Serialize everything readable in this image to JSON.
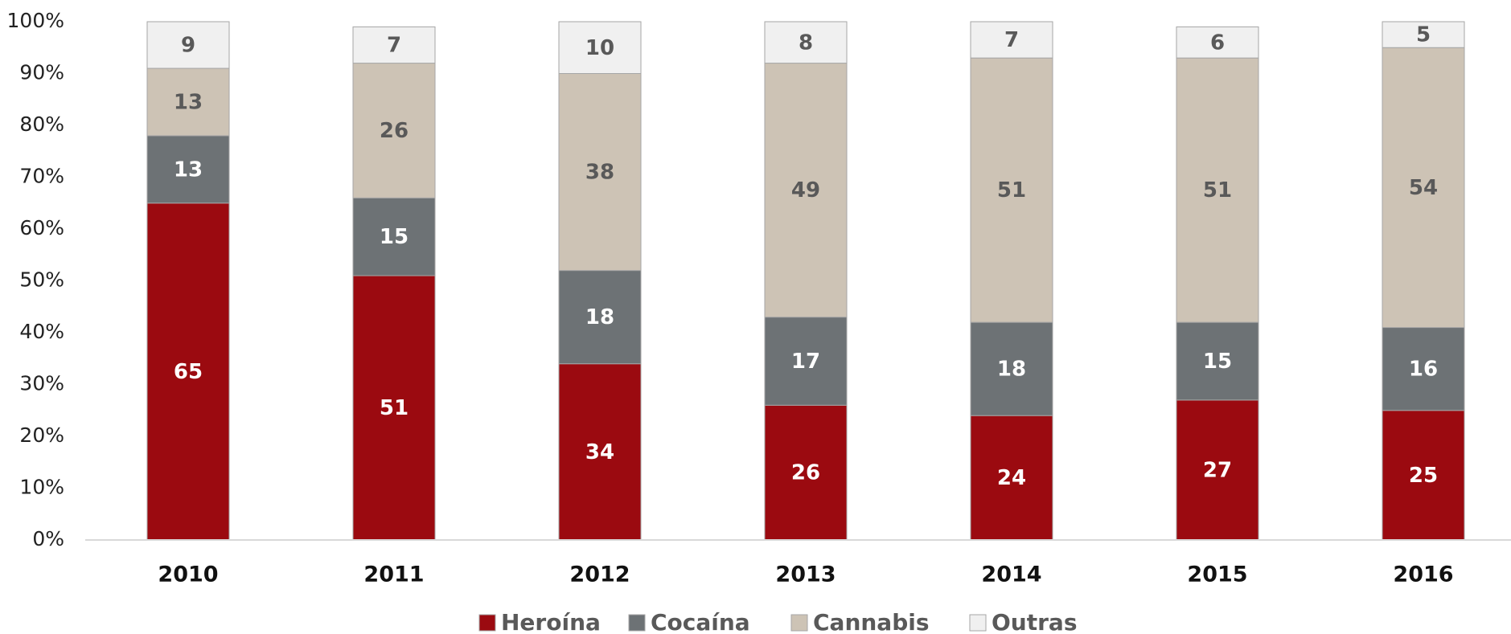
{
  "chart_data": {
    "type": "stacked_bar",
    "categories": [
      "2010",
      "2011",
      "2012",
      "2013",
      "2014",
      "2015",
      "2016"
    ],
    "series": [
      {
        "name": "Heroína",
        "color": "#9b0a10",
        "label_color": "#ffffff",
        "values": [
          65,
          51,
          34,
          26,
          24,
          27,
          25
        ]
      },
      {
        "name": "Cocaína",
        "color": "#6d7275",
        "label_color": "#ffffff",
        "values": [
          13,
          15,
          18,
          17,
          18,
          15,
          16
        ]
      },
      {
        "name": "Cannabis",
        "color": "#cdc3b5",
        "label_color": "#595959",
        "values": [
          13,
          26,
          38,
          49,
          51,
          51,
          54
        ]
      },
      {
        "name": "Outras",
        "color": "#f0f0f0",
        "label_color": "#595959",
        "values": [
          9,
          7,
          10,
          8,
          7,
          6,
          5
        ]
      }
    ],
    "ylim": [
      0,
      100
    ],
    "yticks": [
      {
        "value": 0,
        "label": "0%"
      },
      {
        "value": 10,
        "label": "10%"
      },
      {
        "value": 20,
        "label": "20%"
      },
      {
        "value": 30,
        "label": "30%"
      },
      {
        "value": 40,
        "label": "40%"
      },
      {
        "value": 50,
        "label": "50%"
      },
      {
        "value": 60,
        "label": "60%"
      },
      {
        "value": 70,
        "label": "70%"
      },
      {
        "value": 80,
        "label": "80%"
      },
      {
        "value": 90,
        "label": "90%"
      },
      {
        "value": 100,
        "label": "100%"
      }
    ],
    "grid": false,
    "legend": "bottom"
  }
}
